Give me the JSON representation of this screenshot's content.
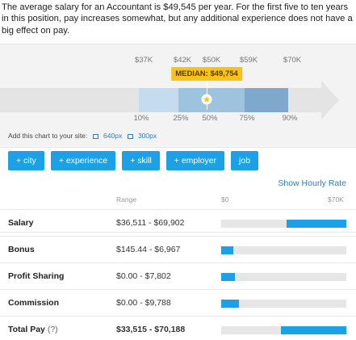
{
  "intro_text": "The average salary for an Accountant is $49,545 per year. For the first five to ten years in this position, pay increases somewhat, but any additional experience does not have a big effect on pay.",
  "chart_data": {
    "type": "bar",
    "title": "",
    "salary_ticks": [
      "$37K",
      "$42K",
      "$50K",
      "$59K",
      "$70K"
    ],
    "percentile_labels": [
      "10%",
      "25%",
      "50%",
      "75%",
      "90%"
    ],
    "percentile_values": [
      37000,
      42000,
      50000,
      59000,
      70000
    ],
    "median_label": "MEDIAN: $49,754",
    "median_value": 49754
  },
  "embed": {
    "label": "Add this chart to your site:",
    "size_large": "640px",
    "size_small": "300px"
  },
  "filters": [
    "+ city",
    "+ experience",
    "+ skill",
    "+ employer",
    "job"
  ],
  "hourly_link": "Show Hourly Rate",
  "table": {
    "range_header": "Range",
    "scale_min": "$0",
    "scale_max": "$70K",
    "scale_max_value": 70000,
    "rows": [
      {
        "label": "Salary",
        "note": "",
        "range": "$36,511 - $69,902",
        "min": 36511,
        "max": 69902
      },
      {
        "label": "Bonus",
        "note": "",
        "range": "$145.44 - $6,967",
        "min": 145.44,
        "max": 6967
      },
      {
        "label": "Profit Sharing",
        "note": "",
        "range": "$0.00 - $7,802",
        "min": 0,
        "max": 7802
      },
      {
        "label": "Commission",
        "note": "",
        "range": "$0.00 - $9,788",
        "min": 0,
        "max": 9788
      },
      {
        "label": "Total Pay",
        "note": "(?)",
        "range": "$33,515 - $70,188",
        "min": 33515,
        "max": 70188
      }
    ]
  },
  "colors": {
    "accent": "#1da1e6",
    "median": "#f7c21a",
    "link": "#2a7ec4"
  }
}
